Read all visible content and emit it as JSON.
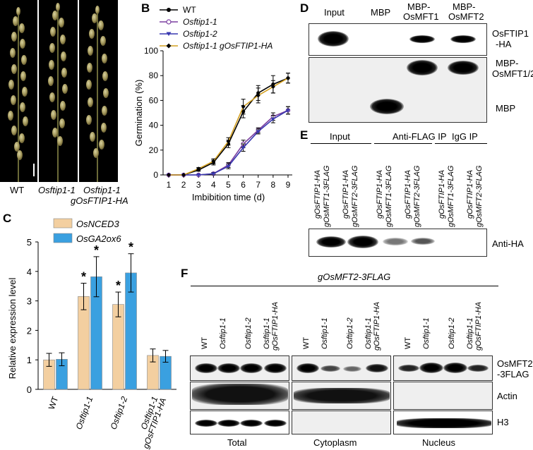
{
  "panels": {
    "A": "A",
    "B": "B",
    "C": "C",
    "D": "D",
    "E": "E",
    "F": "F"
  },
  "panel_a": {
    "labels": [
      "WT",
      "Osftip1-1",
      "Osftip1-1",
      "gOsFTIP1-HA"
    ]
  },
  "chart_b": {
    "type": "line",
    "legend": [
      "WT",
      "Osftip1-1",
      "Osftip1-2",
      "Osftip1-1 gOsFTIP1-HA"
    ],
    "ylabel": "Germination (%)",
    "xlabel": "Imbibition time (d)",
    "categories": [
      1,
      2,
      3,
      4,
      5,
      6,
      7,
      8,
      9
    ],
    "yticks": [
      0,
      20,
      40,
      60,
      80,
      100
    ],
    "ylim": [
      0,
      100
    ],
    "colors": [
      "#000000",
      "#7b3fa0",
      "#3838b0",
      "#d4a020"
    ],
    "series": [
      {
        "name": "WT",
        "values": [
          0,
          0,
          4,
          10,
          25,
          51,
          66,
          73,
          78
        ],
        "errors": [
          0,
          0,
          1,
          2,
          3,
          5,
          6,
          7,
          4
        ]
      },
      {
        "name": "Osftip1-1",
        "values": [
          0,
          0,
          0,
          1,
          8,
          25,
          36,
          47,
          52
        ],
        "errors": [
          0,
          0,
          0,
          1,
          2,
          3,
          2,
          3,
          3
        ]
      },
      {
        "name": "Osftip1-2",
        "values": [
          0,
          0,
          0,
          1,
          7,
          22,
          35,
          45,
          52
        ],
        "errors": [
          0,
          0,
          0,
          1,
          2,
          3,
          2,
          3,
          3
        ]
      },
      {
        "name": "Osftip1-1 gOsFTIP1-HA",
        "values": [
          0,
          0,
          5,
          11,
          27,
          55,
          64,
          71,
          78
        ],
        "errors": [
          0,
          0,
          1,
          2,
          3,
          6,
          6,
          5,
          4
        ]
      }
    ]
  },
  "chart_c": {
    "type": "bar",
    "legend": [
      "OsNCED3",
      "OsGA2ox6"
    ],
    "ylabel": "Relative expression level",
    "categories": [
      "WT",
      "Osftip1-1",
      "Osftip1-2",
      "Osftip1-1",
      "gOsFTIP1-HA"
    ],
    "yticks": [
      0,
      1,
      2,
      3,
      4,
      5
    ],
    "ylim": [
      0,
      5
    ],
    "colors": [
      "#f3cfa0",
      "#3aa0e0"
    ],
    "series": [
      {
        "name": "OsNCED3",
        "values": [
          1.0,
          3.15,
          2.88,
          1.15
        ],
        "errors": [
          0.22,
          0.45,
          0.42,
          0.22
        ]
      },
      {
        "name": "OsGA2ox6",
        "values": [
          1.02,
          3.82,
          3.95,
          1.12
        ],
        "errors": [
          0.22,
          0.68,
          0.65,
          0.2
        ]
      }
    ],
    "significance": "*"
  },
  "panel_d": {
    "columns": [
      "Input",
      "MBP",
      "MBP-",
      "OsMFT1",
      "MBP-",
      "OsMFT2"
    ],
    "rows": [
      "OsFTIP1",
      "-HA",
      "MBP-",
      "OsMFT1/2",
      "MBP"
    ]
  },
  "panel_e": {
    "groups": [
      "Input",
      "Anti-FLAG IP",
      "IgG IP"
    ],
    "lane_line1": "gOsFTIP1-HA",
    "lane_line2a": "gOsMFT1-3FLAG",
    "lane_line2b": "gOsMFT2-3FLAG",
    "row": "Anti-HA"
  },
  "panel_f": {
    "title": "gOsMFT2-3FLAG",
    "lanes": [
      "WT",
      "Osftip1-1",
      "Osftip1-2",
      "Osftip1-1",
      "gOsFTIP1-HA"
    ],
    "rows": [
      "OsMFT2",
      "-3FLAG",
      "Actin",
      "H3"
    ],
    "fractions": [
      "Total",
      "Cytoplasm",
      "Nucleus"
    ]
  }
}
